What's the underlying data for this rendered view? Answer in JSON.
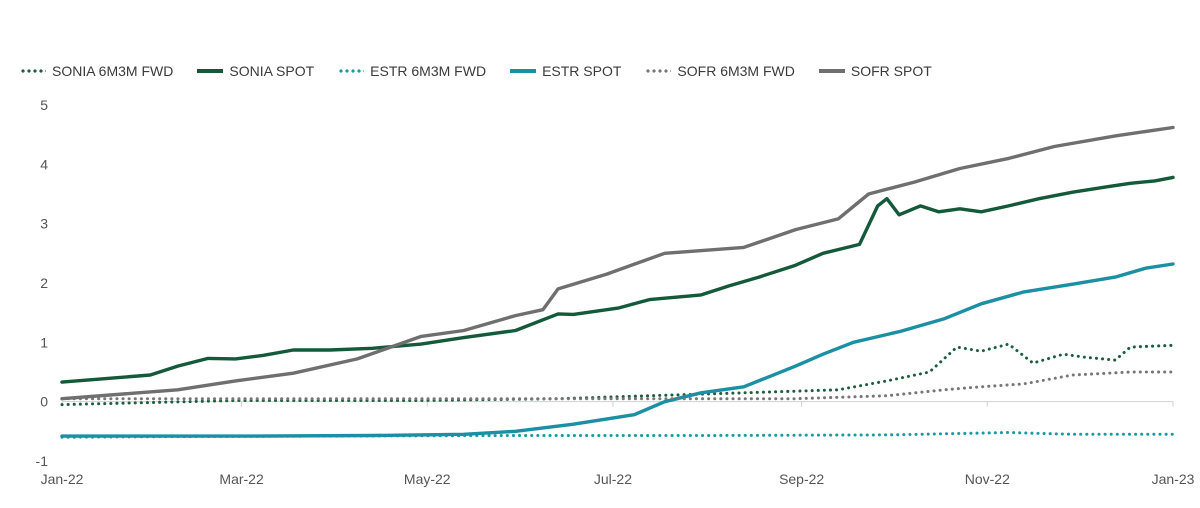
{
  "chart_data": {
    "type": "line",
    "title": "",
    "xlabel": "",
    "ylabel": "",
    "ylim": [
      -1,
      5
    ],
    "yticks": [
      "5",
      "4",
      "3",
      "2",
      "1",
      "0",
      "-1"
    ],
    "yticks_values": [
      5,
      4,
      3,
      2,
      1,
      0,
      -1
    ],
    "xticks": [
      "Jan-22",
      "Mar-22",
      "May-22",
      "Jul-22",
      "Sep-22",
      "Nov-22",
      "Jan-23"
    ],
    "xticks_values": [
      "2022-01-03",
      "2022-03-03",
      "2022-05-03",
      "2022-07-03",
      "2022-09-03",
      "2022-11-03",
      "2023-01-03"
    ],
    "x_range": [
      "2022-01-03",
      "2023-01-03"
    ],
    "grid": false,
    "legend_position": "top",
    "series": [
      {
        "name": "SONIA 6M3M FWD",
        "style": "dotted",
        "color": "#1e5e3e",
        "points": [
          [
            "2022-01-03",
            -0.05
          ],
          [
            "2022-03-01",
            0.02
          ],
          [
            "2022-05-01",
            0.02
          ],
          [
            "2022-06-15",
            0.05
          ],
          [
            "2022-07-15",
            0.1
          ],
          [
            "2022-08-15",
            0.15
          ],
          [
            "2022-09-15",
            0.2
          ],
          [
            "2022-10-01",
            0.35
          ],
          [
            "2022-10-15",
            0.5
          ],
          [
            "2022-10-24",
            0.92
          ],
          [
            "2022-11-01",
            0.85
          ],
          [
            "2022-11-10",
            0.97
          ],
          [
            "2022-11-18",
            0.65
          ],
          [
            "2022-11-28",
            0.8
          ],
          [
            "2022-12-05",
            0.75
          ],
          [
            "2022-12-15",
            0.7
          ],
          [
            "2022-12-20",
            0.92
          ],
          [
            "2023-01-03",
            0.95
          ]
        ]
      },
      {
        "name": "SONIA SPOT",
        "style": "solid",
        "color": "#145a3a",
        "points": [
          [
            "2022-01-03",
            0.33
          ],
          [
            "2022-02-01",
            0.45
          ],
          [
            "2022-02-10",
            0.6
          ],
          [
            "2022-02-20",
            0.73
          ],
          [
            "2022-03-01",
            0.72
          ],
          [
            "2022-03-10",
            0.78
          ],
          [
            "2022-03-20",
            0.87
          ],
          [
            "2022-04-01",
            0.87
          ],
          [
            "2022-04-15",
            0.9
          ],
          [
            "2022-05-01",
            0.97
          ],
          [
            "2022-05-15",
            1.08
          ],
          [
            "2022-06-01",
            1.2
          ],
          [
            "2022-06-15",
            1.48
          ],
          [
            "2022-06-20",
            1.47
          ],
          [
            "2022-07-05",
            1.58
          ],
          [
            "2022-07-15",
            1.72
          ],
          [
            "2022-08-01",
            1.8
          ],
          [
            "2022-08-10",
            1.95
          ],
          [
            "2022-08-20",
            2.1
          ],
          [
            "2022-09-01",
            2.3
          ],
          [
            "2022-09-10",
            2.5
          ],
          [
            "2022-09-18",
            2.6
          ],
          [
            "2022-09-22",
            2.65
          ],
          [
            "2022-09-28",
            3.3
          ],
          [
            "2022-10-01",
            3.42
          ],
          [
            "2022-10-05",
            3.15
          ],
          [
            "2022-10-12",
            3.3
          ],
          [
            "2022-10-18",
            3.2
          ],
          [
            "2022-10-25",
            3.25
          ],
          [
            "2022-11-01",
            3.2
          ],
          [
            "2022-11-10",
            3.3
          ],
          [
            "2022-11-20",
            3.42
          ],
          [
            "2022-12-01",
            3.53
          ],
          [
            "2022-12-12",
            3.62
          ],
          [
            "2022-12-20",
            3.68
          ],
          [
            "2022-12-28",
            3.72
          ],
          [
            "2023-01-03",
            3.78
          ]
        ]
      },
      {
        "name": "ESTR 6M3M FWD",
        "style": "dotted",
        "color": "#1a9aa3",
        "points": [
          [
            "2022-01-03",
            -0.6
          ],
          [
            "2022-02-01",
            -0.59
          ],
          [
            "2022-04-01",
            -0.58
          ],
          [
            "2022-06-01",
            -0.57
          ],
          [
            "2022-08-01",
            -0.57
          ],
          [
            "2022-10-01",
            -0.56
          ],
          [
            "2022-11-01",
            -0.53
          ],
          [
            "2022-11-10",
            -0.52
          ],
          [
            "2022-12-01",
            -0.55
          ],
          [
            "2023-01-03",
            -0.55
          ]
        ]
      },
      {
        "name": "ESTR SPOT",
        "style": "solid",
        "color": "#1b8fa3",
        "points": [
          [
            "2022-01-03",
            -0.58
          ],
          [
            "2022-03-01",
            -0.58
          ],
          [
            "2022-04-15",
            -0.57
          ],
          [
            "2022-05-15",
            -0.55
          ],
          [
            "2022-06-01",
            -0.5
          ],
          [
            "2022-06-20",
            -0.38
          ],
          [
            "2022-07-10",
            -0.22
          ],
          [
            "2022-07-20",
            0.0
          ],
          [
            "2022-08-01",
            0.15
          ],
          [
            "2022-08-15",
            0.25
          ],
          [
            "2022-09-01",
            0.6
          ],
          [
            "2022-09-10",
            0.8
          ],
          [
            "2022-09-20",
            1.0
          ],
          [
            "2022-10-05",
            1.18
          ],
          [
            "2022-10-20",
            1.4
          ],
          [
            "2022-11-01",
            1.65
          ],
          [
            "2022-11-15",
            1.85
          ],
          [
            "2022-12-01",
            1.98
          ],
          [
            "2022-12-15",
            2.1
          ],
          [
            "2022-12-25",
            2.25
          ],
          [
            "2023-01-03",
            2.32
          ]
        ]
      },
      {
        "name": "SOFR 6M3M FWD",
        "style": "dotted",
        "color": "#777777",
        "points": [
          [
            "2022-01-03",
            0.05
          ],
          [
            "2022-04-01",
            0.05
          ],
          [
            "2022-07-01",
            0.05
          ],
          [
            "2022-09-01",
            0.05
          ],
          [
            "2022-10-01",
            0.1
          ],
          [
            "2022-10-20",
            0.2
          ],
          [
            "2022-11-01",
            0.25
          ],
          [
            "2022-11-15",
            0.3
          ],
          [
            "2022-12-01",
            0.45
          ],
          [
            "2022-12-20",
            0.5
          ],
          [
            "2023-01-03",
            0.5
          ]
        ]
      },
      {
        "name": "SOFR SPOT",
        "style": "solid",
        "color": "#6f6f6f",
        "points": [
          [
            "2022-01-03",
            0.05
          ],
          [
            "2022-02-10",
            0.2
          ],
          [
            "2022-03-01",
            0.35
          ],
          [
            "2022-03-20",
            0.48
          ],
          [
            "2022-04-10",
            0.72
          ],
          [
            "2022-05-01",
            1.1
          ],
          [
            "2022-05-15",
            1.2
          ],
          [
            "2022-06-01",
            1.45
          ],
          [
            "2022-06-10",
            1.55
          ],
          [
            "2022-06-15",
            1.9
          ],
          [
            "2022-07-01",
            2.15
          ],
          [
            "2022-07-20",
            2.5
          ],
          [
            "2022-08-15",
            2.6
          ],
          [
            "2022-09-01",
            2.9
          ],
          [
            "2022-09-15",
            3.08
          ],
          [
            "2022-09-25",
            3.5
          ],
          [
            "2022-10-10",
            3.7
          ],
          [
            "2022-10-25",
            3.93
          ],
          [
            "2022-11-10",
            4.1
          ],
          [
            "2022-11-25",
            4.3
          ],
          [
            "2022-12-15",
            4.48
          ],
          [
            "2023-01-03",
            4.62
          ]
        ]
      }
    ]
  }
}
